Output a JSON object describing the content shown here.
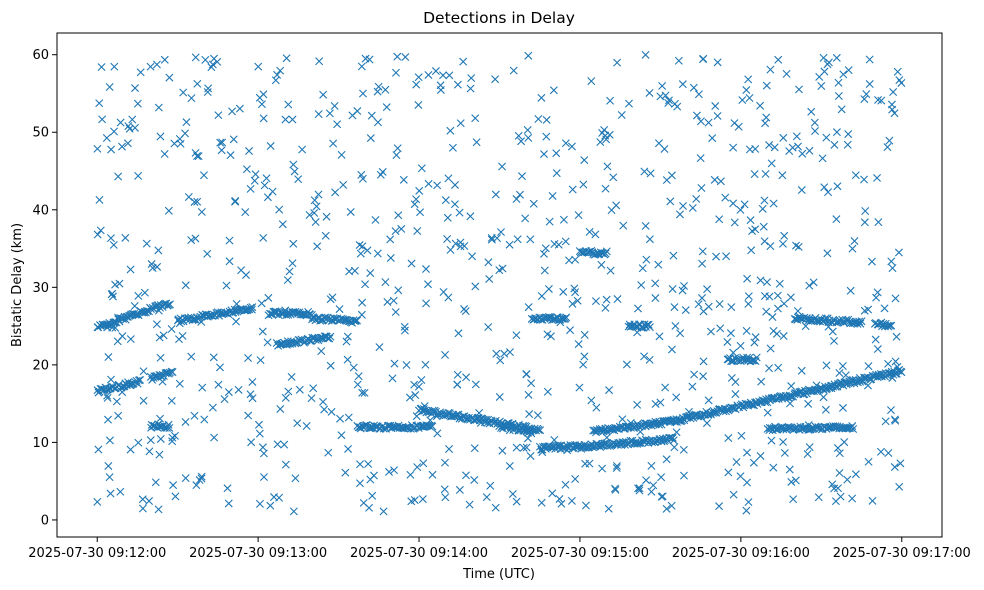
{
  "chart_data": {
    "type": "scatter",
    "title": "Detections in Delay",
    "xlabel": "Time (UTC)",
    "ylabel": "Bistatic Delay (km)",
    "marker": "x",
    "color": "#1f77b4",
    "grid": false,
    "legend": false,
    "xlim": [
      "2025-07-30 09:11:45",
      "2025-07-30 09:17:15"
    ],
    "ylim": [
      -2.2,
      62.8
    ],
    "x_ticks": [
      "2025-07-30 09:12:00",
      "2025-07-30 09:13:00",
      "2025-07-30 09:14:00",
      "2025-07-30 09:15:00",
      "2025-07-30 09:16:00",
      "2025-07-30 09:17:00"
    ],
    "y_ticks": [
      "0",
      "10",
      "20",
      "30",
      "40",
      "50",
      "60"
    ],
    "y_tick_values": [
      0,
      10,
      20,
      30,
      40,
      50,
      60
    ],
    "series": [
      {
        "tracks": [
          {
            "x_start": "2025-07-30 09:12:00",
            "x_end": "2025-07-30 09:12:27",
            "y_start": 24.8,
            "y_end": 28.0
          },
          {
            "x_start": "2025-07-30 09:12:00",
            "x_end": "2025-07-30 09:12:16",
            "y_start": 16.6,
            "y_end": 17.9
          },
          {
            "x_start": "2025-07-30 09:12:20",
            "x_end": "2025-07-30 09:12:28",
            "y_start": 18.2,
            "y_end": 19.0
          },
          {
            "x_start": "2025-07-30 09:12:20",
            "x_end": "2025-07-30 09:12:27",
            "y_start": 12.1,
            "y_end": 12.1
          },
          {
            "x_start": "2025-07-30 09:12:30",
            "x_end": "2025-07-30 09:12:58",
            "y_start": 25.7,
            "y_end": 27.3
          },
          {
            "x_start": "2025-07-30 09:13:04",
            "x_end": "2025-07-30 09:13:20",
            "y_start": 26.6,
            "y_end": 26.6
          },
          {
            "x_start": "2025-07-30 09:13:07",
            "x_end": "2025-07-30 09:13:27",
            "y_start": 22.6,
            "y_end": 23.6
          },
          {
            "x_start": "2025-07-30 09:13:20",
            "x_end": "2025-07-30 09:13:37",
            "y_start": 26.0,
            "y_end": 25.6
          },
          {
            "x_start": "2025-07-30 09:13:37",
            "x_end": "2025-07-30 09:14:05",
            "y_start": 12.0,
            "y_end": 12.0
          },
          {
            "x_start": "2025-07-30 09:14:00",
            "x_end": "2025-07-30 09:14:45",
            "y_start": 14.2,
            "y_end": 11.6
          },
          {
            "x_start": "2025-07-30 09:14:30",
            "x_end": "2025-07-30 09:14:42",
            "y_start": 12.0,
            "y_end": 11.4
          },
          {
            "x_start": "2025-07-30 09:14:45",
            "x_end": "2025-07-30 09:15:08",
            "y_start": 9.3,
            "y_end": 9.6
          },
          {
            "x_start": "2025-07-30 09:14:42",
            "x_end": "2025-07-30 09:14:55",
            "y_start": 26.0,
            "y_end": 26.0
          },
          {
            "x_start": "2025-07-30 09:15:05",
            "x_end": "2025-07-30 09:15:34",
            "y_start": 11.4,
            "y_end": 12.7
          },
          {
            "x_start": "2025-07-30 09:15:34",
            "x_end": "2025-07-30 09:17:00",
            "y_start": 12.7,
            "y_end": 19.2
          },
          {
            "x_start": "2025-07-30 09:15:08",
            "x_end": "2025-07-30 09:15:35",
            "y_start": 9.7,
            "y_end": 10.4
          },
          {
            "x_start": "2025-07-30 09:15:00",
            "x_end": "2025-07-30 09:15:10",
            "y_start": 34.5,
            "y_end": 34.4
          },
          {
            "x_start": "2025-07-30 09:15:18",
            "x_end": "2025-07-30 09:15:26",
            "y_start": 25.0,
            "y_end": 25.0
          },
          {
            "x_start": "2025-07-30 09:15:55",
            "x_end": "2025-07-30 09:16:06",
            "y_start": 20.7,
            "y_end": 20.7
          },
          {
            "x_start": "2025-07-30 09:16:10",
            "x_end": "2025-07-30 09:16:42",
            "y_start": 11.8,
            "y_end": 11.9
          },
          {
            "x_start": "2025-07-30 09:16:20",
            "x_end": "2025-07-30 09:16:45",
            "y_start": 26.0,
            "y_end": 25.5
          },
          {
            "x_start": "2025-07-30 09:16:50",
            "x_end": "2025-07-30 09:16:56",
            "y_start": 25.2,
            "y_end": 25.2
          }
        ],
        "clutter_points_approx": 900,
        "clutter_y_range": [
          1,
          60
        ]
      }
    ]
  }
}
